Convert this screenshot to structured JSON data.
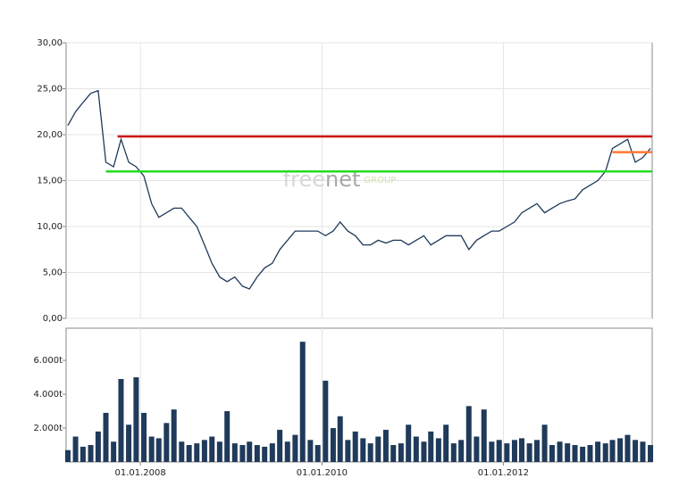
{
  "chart_data": [
    {
      "type": "line",
      "color": "#1f3a5a",
      "watermark": [
        "free",
        "net",
        "GROUP"
      ],
      "x": [
        "2007-03-15",
        "2007-04-15",
        "2007-05-15",
        "2007-06-15",
        "2007-07-15",
        "2007-08-15",
        "2007-09-15",
        "2007-10-15",
        "2007-11-15",
        "2007-12-15",
        "2008-01-15",
        "2008-02-15",
        "2008-03-15",
        "2008-04-15",
        "2008-05-15",
        "2008-06-15",
        "2008-07-15",
        "2008-08-15",
        "2008-09-15",
        "2008-10-15",
        "2008-11-15",
        "2008-12-15",
        "2009-01-15",
        "2009-02-15",
        "2009-03-15",
        "2009-04-15",
        "2009-05-15",
        "2009-06-15",
        "2009-07-15",
        "2009-08-15",
        "2009-09-15",
        "2009-10-15",
        "2009-11-15",
        "2009-12-15",
        "2010-01-15",
        "2010-02-15",
        "2010-03-15",
        "2010-04-15",
        "2010-05-15",
        "2010-06-15",
        "2010-07-15",
        "2010-08-15",
        "2010-09-15",
        "2010-10-15",
        "2010-11-15",
        "2010-12-15",
        "2011-01-15",
        "2011-02-15",
        "2011-03-15",
        "2011-04-15",
        "2011-05-15",
        "2011-06-15",
        "2011-07-15",
        "2011-08-15",
        "2011-09-15",
        "2011-10-15",
        "2011-11-15",
        "2011-12-15",
        "2012-01-15",
        "2012-02-15",
        "2012-03-15",
        "2012-04-15",
        "2012-05-15",
        "2012-06-15",
        "2012-07-15",
        "2012-08-15",
        "2012-09-15",
        "2012-10-15",
        "2012-11-15",
        "2012-12-15",
        "2013-01-15",
        "2013-02-15",
        "2013-03-15",
        "2013-04-15",
        "2013-05-15",
        "2013-06-15",
        "2013-07-15",
        "2013-08-15"
      ],
      "values": [
        21,
        22.5,
        23.5,
        24.5,
        24.8,
        17,
        16.5,
        19.5,
        17,
        16.5,
        15.5,
        12.5,
        11,
        11.5,
        12,
        12,
        11,
        10,
        8,
        6,
        4.5,
        4,
        4.5,
        3.5,
        3.2,
        4.5,
        5.5,
        6,
        7.5,
        8.5,
        9.5,
        9.5,
        9.5,
        9.5,
        9,
        9.5,
        10.5,
        9.5,
        9,
        8,
        8,
        8.5,
        8.2,
        8.5,
        8.5,
        8,
        8.5,
        9,
        8,
        8.5,
        9,
        9,
        9,
        7.5,
        8.5,
        9,
        9.5,
        9.5,
        10,
        10.5,
        11.5,
        12,
        12.5,
        11.5,
        12,
        12.5,
        12.8,
        13,
        14,
        14.5,
        15,
        16,
        18.5,
        19,
        19.5,
        17,
        17.5,
        18.5
      ],
      "reference_lines": [
        {
          "value": 19.8,
          "color": "#cc1111",
          "start": "2007-10-01",
          "end": "2013-08-22"
        },
        {
          "value": 16.0,
          "color": "#22dd22",
          "start": "2007-08-15",
          "end": "2013-08-22"
        },
        {
          "value": 18.1,
          "color": "#ff7733",
          "start": "2013-03-15",
          "end": "2013-08-22"
        }
      ],
      "xlim": [
        "2007-03-08",
        "2013-08-22"
      ],
      "ylim": [
        0,
        30
      ],
      "yticks": [
        {
          "value": 0,
          "label": "0,00"
        },
        {
          "value": 5,
          "label": "5,00"
        },
        {
          "value": 10,
          "label": "10,00"
        },
        {
          "value": 15,
          "label": "15,00"
        },
        {
          "value": 20,
          "label": "20,00"
        },
        {
          "value": 25,
          "label": "25,00"
        },
        {
          "value": 30,
          "label": "30,00"
        }
      ],
      "grid": true
    },
    {
      "type": "bar",
      "color": "#1f3a5a",
      "x": [
        "2007-03-15",
        "2007-04-15",
        "2007-05-15",
        "2007-06-15",
        "2007-07-15",
        "2007-08-15",
        "2007-09-15",
        "2007-10-15",
        "2007-11-15",
        "2007-12-15",
        "2008-01-15",
        "2008-02-15",
        "2008-03-15",
        "2008-04-15",
        "2008-05-15",
        "2008-06-15",
        "2008-07-15",
        "2008-08-15",
        "2008-09-15",
        "2008-10-15",
        "2008-11-15",
        "2008-12-15",
        "2009-01-15",
        "2009-02-15",
        "2009-03-15",
        "2009-04-15",
        "2009-05-15",
        "2009-06-15",
        "2009-07-15",
        "2009-08-15",
        "2009-09-15",
        "2009-10-15",
        "2009-11-15",
        "2009-12-15",
        "2010-01-15",
        "2010-02-15",
        "2010-03-15",
        "2010-04-15",
        "2010-05-15",
        "2010-06-15",
        "2010-07-15",
        "2010-08-15",
        "2010-09-15",
        "2010-10-15",
        "2010-11-15",
        "2010-12-15",
        "2011-01-15",
        "2011-02-15",
        "2011-03-15",
        "2011-04-15",
        "2011-05-15",
        "2011-06-15",
        "2011-07-15",
        "2011-08-15",
        "2011-09-15",
        "2011-10-15",
        "2011-11-15",
        "2011-12-15",
        "2012-01-15",
        "2012-02-15",
        "2012-03-15",
        "2012-04-15",
        "2012-05-15",
        "2012-06-15",
        "2012-07-15",
        "2012-08-15",
        "2012-09-15",
        "2012-10-15",
        "2012-11-15",
        "2012-12-15",
        "2013-01-15",
        "2013-02-15",
        "2013-03-15",
        "2013-04-15",
        "2013-05-15",
        "2013-06-15",
        "2013-07-15",
        "2013-08-15"
      ],
      "values": [
        700,
        1500,
        900,
        1000,
        1800,
        2900,
        1200,
        4900,
        2200,
        5000,
        2900,
        1500,
        1400,
        2300,
        3100,
        1200,
        1000,
        1100,
        1300,
        1500,
        1200,
        3000,
        1100,
        1000,
        1200,
        1000,
        900,
        1100,
        1900,
        1200,
        1600,
        7100,
        1300,
        1000,
        4800,
        2000,
        2700,
        1300,
        1800,
        1400,
        1100,
        1500,
        1900,
        1000,
        1100,
        2200,
        1500,
        1200,
        1800,
        1400,
        2200,
        1100,
        1300,
        3300,
        1500,
        3100,
        1200,
        1300,
        1100,
        1300,
        1400,
        1100,
        1300,
        2200,
        1000,
        1200,
        1100,
        1000,
        900,
        1000,
        1200,
        1100,
        1300,
        1400,
        1600,
        1300,
        1200,
        1000
      ],
      "xlim": [
        "2007-03-08",
        "2013-08-22"
      ],
      "xticks": [
        {
          "value": "2008-01-01",
          "label": "01.01.2008"
        },
        {
          "value": "2010-01-01",
          "label": "01.01.2010"
        },
        {
          "value": "2012-01-01",
          "label": "01.01.2012"
        }
      ],
      "ylim": [
        0,
        7900
      ],
      "yticks": [
        {
          "value": 2000,
          "label": "2.000t"
        },
        {
          "value": 4000,
          "label": "4.000t"
        },
        {
          "value": 6000,
          "label": "6.000t"
        }
      ]
    }
  ]
}
